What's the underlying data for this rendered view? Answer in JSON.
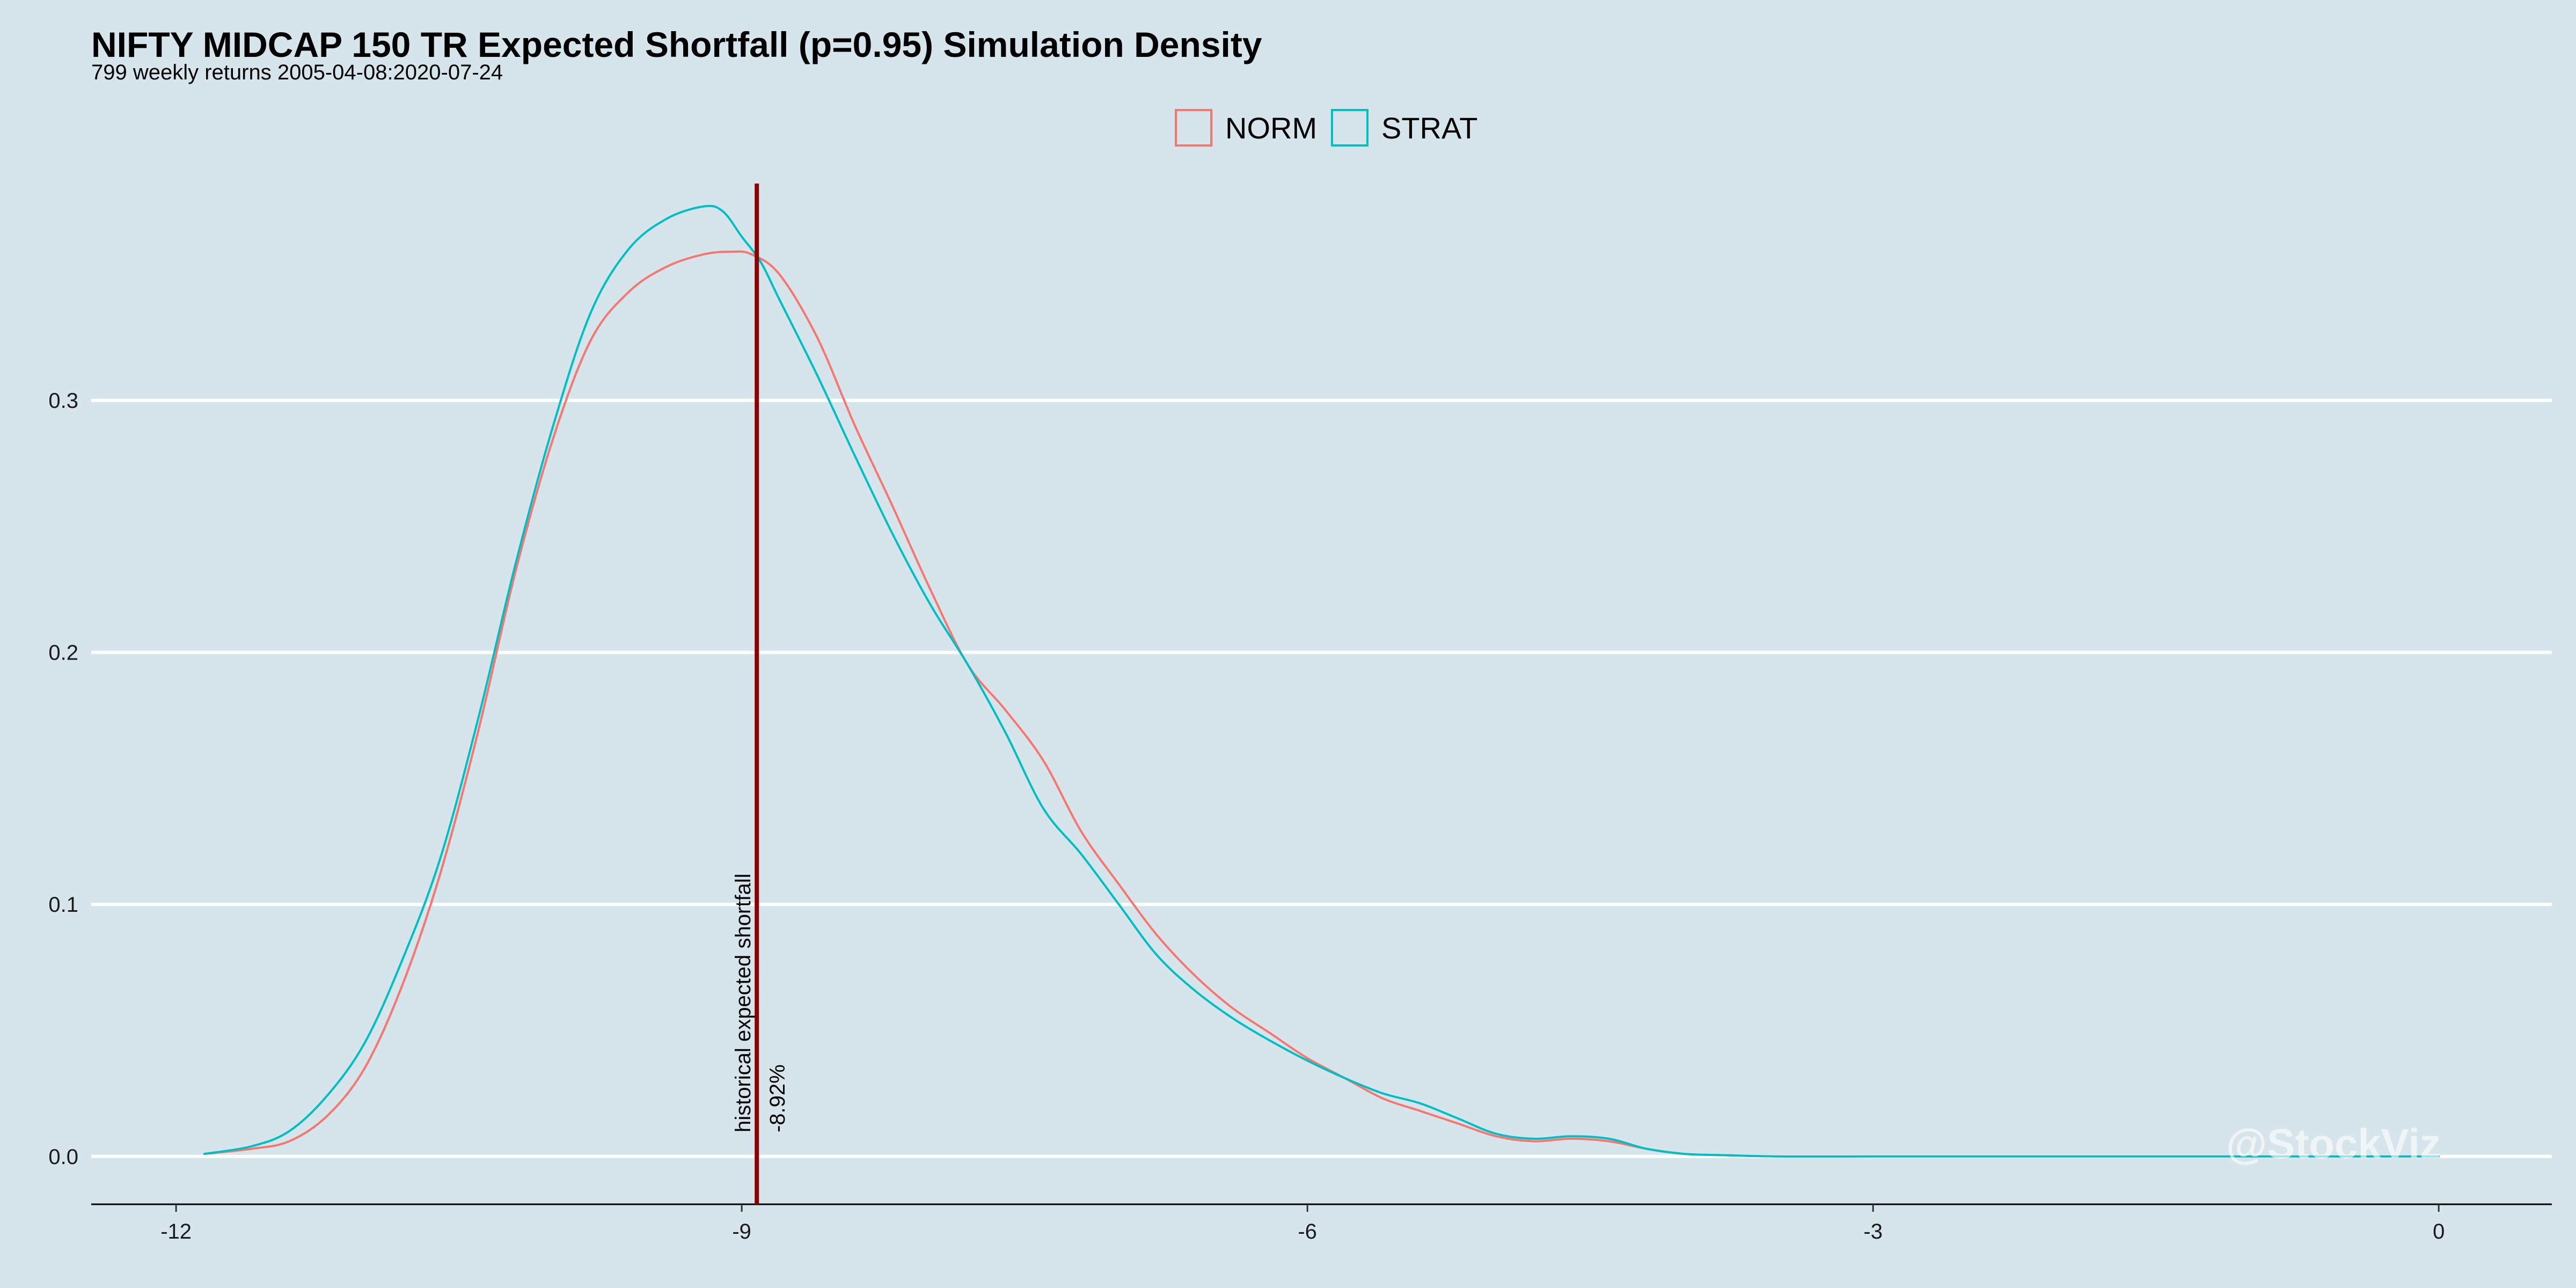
{
  "chart_data": {
    "type": "line",
    "title": "NIFTY MIDCAP 150 TR Expected Shortfall (p=0.95) Simulation Density",
    "subtitle": "799 weekly returns 2005-04-08:2020-07-24",
    "xlabel": "",
    "ylabel": "",
    "xlim": [
      -12.45,
      0.6
    ],
    "ylim": [
      -0.019,
      0.395
    ],
    "x_ticks": [
      -12,
      -9,
      -6,
      -3,
      0
    ],
    "x_tick_labels": [
      "-12",
      "-9",
      "-6",
      "-3",
      "0"
    ],
    "y_ticks": [
      0.0,
      0.1,
      0.2,
      0.3
    ],
    "y_tick_labels": [
      "0.0",
      "0.1",
      "0.2",
      "0.3"
    ],
    "grid": {
      "horizontal": true,
      "vertical": false,
      "color": "#ffffff"
    },
    "legend": {
      "position": "top-center",
      "entries": [
        "NORM",
        "STRAT"
      ]
    },
    "series": [
      {
        "name": "NORM",
        "color": "#f8766d",
        "x": [
          -11.85,
          -11.6,
          -11.4,
          -11.2,
          -11.0,
          -10.8,
          -10.6,
          -10.4,
          -10.2,
          -10.0,
          -9.8,
          -9.6,
          -9.4,
          -9.2,
          -9.05,
          -8.95,
          -8.8,
          -8.6,
          -8.4,
          -8.2,
          -8.0,
          -7.8,
          -7.6,
          -7.4,
          -7.2,
          -7.0,
          -6.8,
          -6.6,
          -6.4,
          -6.2,
          -6.0,
          -5.8,
          -5.6,
          -5.4,
          -5.2,
          -5.0,
          -4.8,
          -4.6,
          -4.4,
          -4.2,
          -4.0,
          -3.8,
          -3.5,
          -3.0,
          -2.0,
          -1.0,
          0.0
        ],
        "y": [
          0.001,
          0.003,
          0.006,
          0.016,
          0.035,
          0.068,
          0.112,
          0.168,
          0.232,
          0.285,
          0.324,
          0.343,
          0.353,
          0.358,
          0.359,
          0.358,
          0.35,
          0.325,
          0.29,
          0.258,
          0.225,
          0.195,
          0.177,
          0.157,
          0.129,
          0.108,
          0.088,
          0.072,
          0.059,
          0.049,
          0.039,
          0.031,
          0.023,
          0.018,
          0.013,
          0.008,
          0.006,
          0.007,
          0.006,
          0.003,
          0.001,
          0.0005,
          0.0,
          0.0,
          0.0,
          0.0,
          0.0
        ]
      },
      {
        "name": "STRAT",
        "color": "#00bfc4",
        "x": [
          -11.85,
          -11.6,
          -11.4,
          -11.2,
          -11.0,
          -10.8,
          -10.6,
          -10.4,
          -10.2,
          -10.0,
          -9.8,
          -9.6,
          -9.4,
          -9.2,
          -9.1,
          -9.0,
          -8.9,
          -8.8,
          -8.6,
          -8.4,
          -8.2,
          -8.0,
          -7.8,
          -7.6,
          -7.4,
          -7.2,
          -7.0,
          -6.8,
          -6.6,
          -6.4,
          -6.2,
          -6.0,
          -5.8,
          -5.6,
          -5.4,
          -5.2,
          -5.0,
          -4.8,
          -4.6,
          -4.4,
          -4.2,
          -4.0,
          -3.8,
          -3.5,
          -3.0,
          -2.0,
          -1.0,
          0.0
        ],
        "y": [
          0.001,
          0.004,
          0.01,
          0.024,
          0.045,
          0.078,
          0.118,
          0.173,
          0.235,
          0.29,
          0.335,
          0.36,
          0.372,
          0.377,
          0.375,
          0.365,
          0.355,
          0.34,
          0.31,
          0.278,
          0.247,
          0.219,
          0.195,
          0.168,
          0.138,
          0.12,
          0.1,
          0.08,
          0.066,
          0.055,
          0.046,
          0.038,
          0.031,
          0.025,
          0.021,
          0.015,
          0.009,
          0.007,
          0.008,
          0.007,
          0.003,
          0.001,
          0.0005,
          0.0,
          0.0,
          0.0,
          0.0,
          0.0
        ]
      }
    ],
    "annotations": [
      {
        "type": "vline",
        "x": -8.92,
        "color": "#8b0000",
        "label": "historical expected shortfall",
        "value_label": "-8.92%"
      }
    ],
    "watermark": "@StockViz"
  }
}
